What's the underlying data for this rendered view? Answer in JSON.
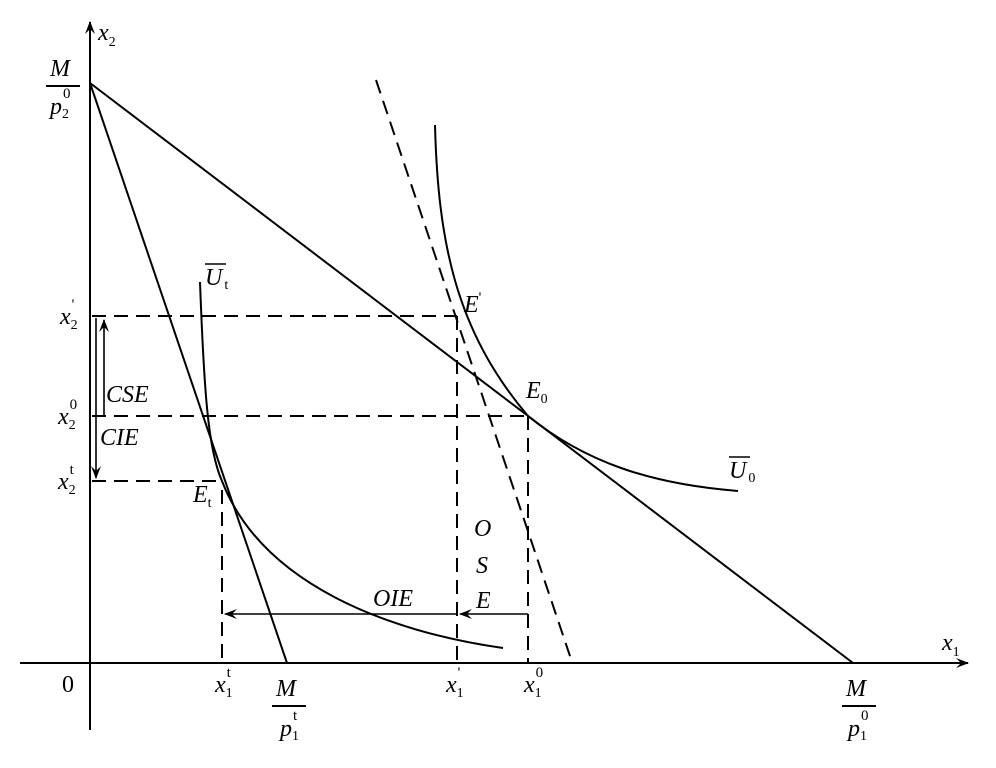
{
  "axes": {
    "x_label": "x",
    "x_sub": "1",
    "y_label": "x",
    "y_sub": "2",
    "origin": "0"
  },
  "intercepts": {
    "y": {
      "num": "M",
      "den": "p",
      "den_sub": "2",
      "den_sup": "0"
    },
    "x0": {
      "num": "M",
      "den": "p",
      "den_sub": "1",
      "den_sup": "0"
    },
    "xt": {
      "num": "M",
      "den": "p",
      "den_sub": "1",
      "den_sup": "t"
    }
  },
  "y_ticks": [
    {
      "base": "x",
      "sub": "2",
      "sup": "'"
    },
    {
      "base": "x",
      "sub": "2",
      "sup": "0"
    },
    {
      "base": "x",
      "sub": "2",
      "sup": "t"
    }
  ],
  "x_ticks": [
    {
      "base": "x",
      "sub": "1",
      "sup": "t"
    },
    {
      "base": "x",
      "sub": "1",
      "sup": "'"
    },
    {
      "base": "x",
      "sub": "1",
      "sup": "0"
    }
  ],
  "curves": {
    "u0": {
      "base": "U",
      "sub": "0"
    },
    "ut": {
      "base": "U",
      "sub": "t"
    }
  },
  "points": {
    "e_prime": {
      "base": "E",
      "sup": "'"
    },
    "e0": {
      "base": "E",
      "sub": "0"
    },
    "et": {
      "base": "E",
      "sub": "t"
    }
  },
  "effects": {
    "cse": "CSE",
    "cie": "CIE",
    "oie": "OIE",
    "ose": [
      "O",
      "S",
      "E"
    ]
  }
}
